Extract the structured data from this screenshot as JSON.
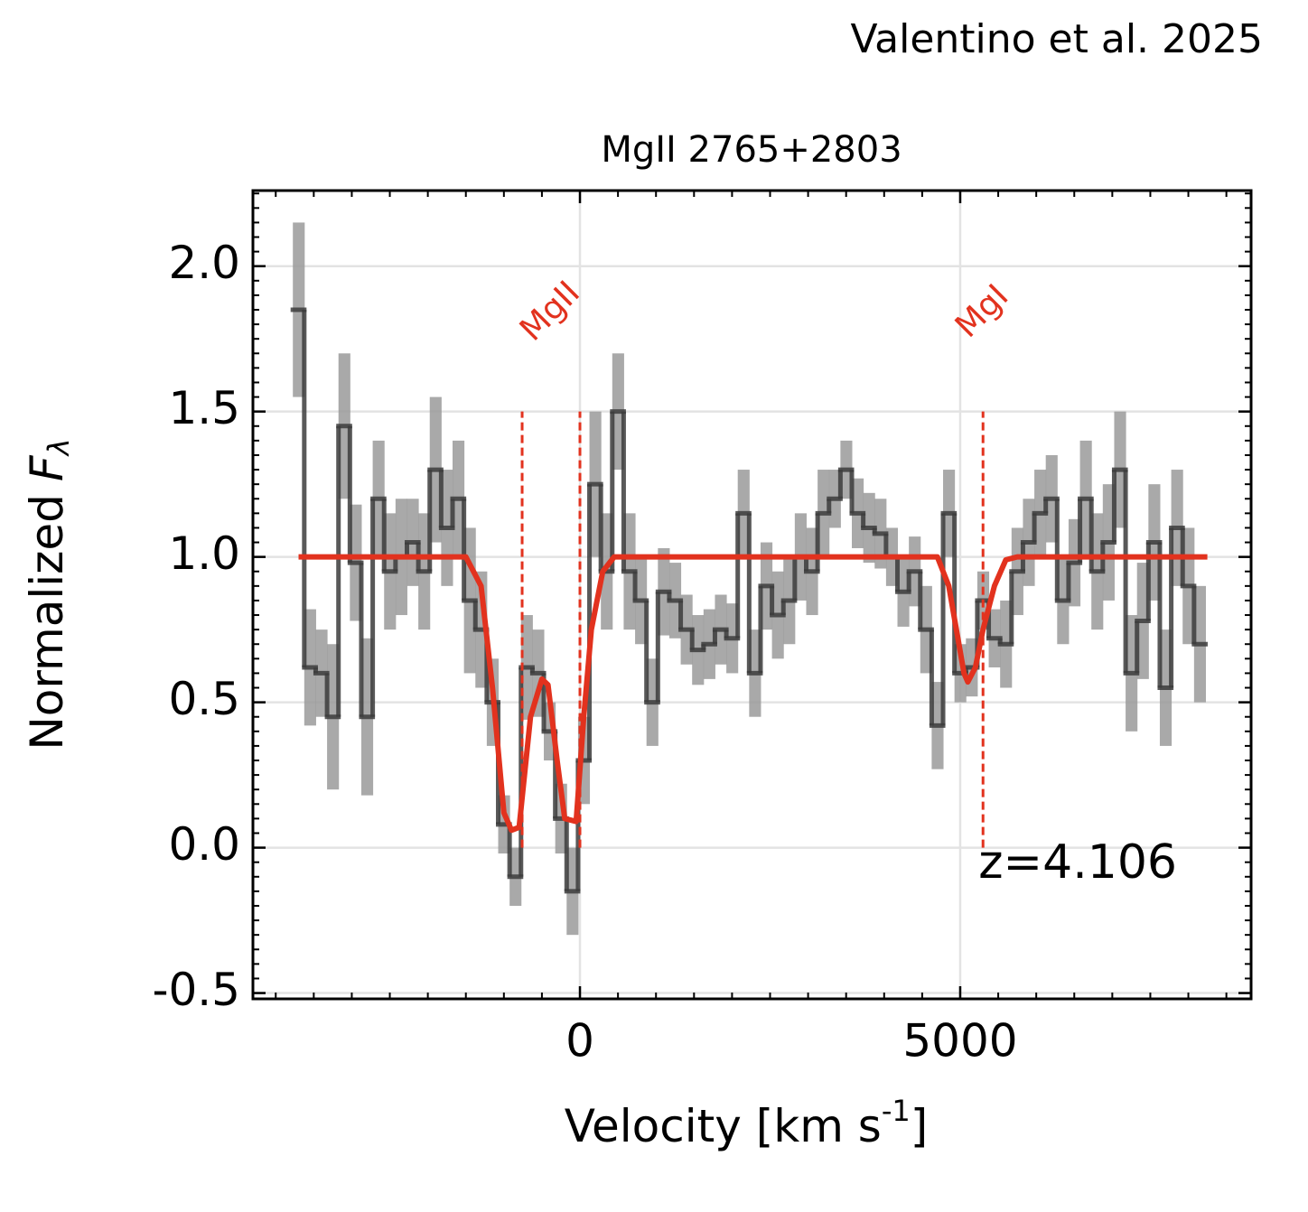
{
  "chart_data": {
    "type": "step",
    "title": "MgII 2765+2803",
    "source": "Valentino et al. 2025",
    "xlabel": [
      "Velocity [km s",
      "-1",
      "]"
    ],
    "ylabel": [
      "Normalized",
      "F",
      "λ"
    ],
    "annotation": "z=4.106",
    "x": [
      -3700,
      -3550,
      -3400,
      -3250,
      -3100,
      -2950,
      -2800,
      -2650,
      -2500,
      -2350,
      -2200,
      -2050,
      -1900,
      -1750,
      -1600,
      -1450,
      -1300,
      -1150,
      -1000,
      -850,
      -700,
      -550,
      -400,
      -250,
      -100,
      50,
      200,
      350,
      500,
      650,
      800,
      950,
      1100,
      1250,
      1400,
      1550,
      1700,
      1850,
      2000,
      2150,
      2300,
      2450,
      2600,
      2750,
      2900,
      3050,
      3200,
      3350,
      3500,
      3650,
      3800,
      3950,
      4100,
      4250,
      4400,
      4550,
      4700,
      4850,
      5000,
      5150,
      5300,
      5450,
      5600,
      5750,
      5900,
      6050,
      6200,
      6350,
      6500,
      6650,
      6800,
      6950,
      7100,
      7250,
      7400,
      7550,
      7700,
      7850,
      8000,
      8150
    ],
    "values": [
      1.85,
      0.62,
      0.6,
      0.45,
      1.45,
      0.98,
      0.45,
      1.2,
      0.95,
      1.0,
      1.05,
      0.95,
      1.3,
      1.1,
      1.2,
      0.85,
      0.75,
      0.5,
      0.08,
      -0.1,
      0.62,
      0.6,
      0.4,
      0.1,
      -0.15,
      0.3,
      1.25,
      0.95,
      1.5,
      0.95,
      0.85,
      0.5,
      0.88,
      0.85,
      0.75,
      0.68,
      0.7,
      0.75,
      0.72,
      1.15,
      0.6,
      0.9,
      0.8,
      0.85,
      1.0,
      0.95,
      1.15,
      1.2,
      1.3,
      1.15,
      1.1,
      1.08,
      1.0,
      0.88,
      0.95,
      0.75,
      0.42,
      1.15,
      0.6,
      0.62,
      0.85,
      0.72,
      0.7,
      0.95,
      1.05,
      1.15,
      1.2,
      0.85,
      0.98,
      1.2,
      0.95,
      1.05,
      1.3,
      0.6,
      0.78,
      1.05,
      0.55,
      1.1,
      0.9,
      0.7
    ],
    "errors": [
      0.3,
      0.2,
      0.15,
      0.25,
      0.25,
      0.2,
      0.27,
      0.2,
      0.2,
      0.2,
      0.15,
      0.2,
      0.25,
      0.2,
      0.2,
      0.25,
      0.2,
      0.15,
      0.1,
      0.1,
      0.18,
      0.15,
      0.1,
      0.12,
      0.15,
      0.15,
      0.25,
      0.2,
      0.2,
      0.2,
      0.15,
      0.15,
      0.15,
      0.13,
      0.12,
      0.12,
      0.12,
      0.12,
      0.12,
      0.15,
      0.15,
      0.15,
      0.15,
      0.15,
      0.15,
      0.15,
      0.15,
      0.1,
      0.1,
      0.12,
      0.12,
      0.12,
      0.1,
      0.12,
      0.12,
      0.15,
      0.15,
      0.15,
      0.1,
      0.1,
      0.1,
      0.1,
      0.15,
      0.15,
      0.15,
      0.15,
      0.15,
      0.15,
      0.15,
      0.2,
      0.2,
      0.2,
      0.2,
      0.2,
      0.2,
      0.2,
      0.2,
      0.2,
      0.2,
      0.2
    ],
    "color": "#3c3c3c",
    "error_color": "#9a9a9a",
    "model": {
      "type": "line",
      "color": "#e2321e",
      "x": [
        -3700,
        -1500,
        -1300,
        -1150,
        -1000,
        -900,
        -800,
        -650,
        -500,
        -420,
        -300,
        -200,
        -50,
        50,
        150,
        300,
        450,
        4700,
        4850,
        4950,
        5050,
        5100,
        5200,
        5300,
        5450,
        5600,
        5750,
        8250
      ],
      "values": [
        1,
        1,
        0.9,
        0.55,
        0.12,
        0.06,
        0.07,
        0.45,
        0.58,
        0.56,
        0.3,
        0.1,
        0.09,
        0.45,
        0.75,
        0.95,
        1,
        1,
        0.9,
        0.75,
        0.6,
        0.57,
        0.62,
        0.75,
        0.9,
        0.99,
        1,
        1
      ]
    },
    "absorption_lines": [
      {
        "name": "MgII",
        "x": [
          -760,
          0
        ]
      },
      {
        "name": "MgI",
        "x": [
          5300
        ]
      }
    ],
    "line_extent": [
      0,
      1.5
    ],
    "line_color": "#e2321e",
    "xlim": [
      -4300,
      8825
    ],
    "ylim": [
      -0.52,
      2.26
    ],
    "xticks": [
      0,
      5000
    ],
    "yticks": [
      -0.5,
      {
        "value": 0,
        "label": "0.0"
      },
      0.5,
      {
        "value": 1,
        "label": "1.0"
      },
      1.5,
      {
        "value": 2,
        "label": "2.0"
      }
    ],
    "xminorticks": [
      -4000,
      -3500,
      -3000,
      -2500,
      -2000,
      -1500,
      -1000,
      -500,
      500,
      1000,
      1500,
      2000,
      2500,
      3000,
      3500,
      4000,
      4500,
      5500,
      6000,
      6500,
      7000,
      7500,
      8000,
      8500
    ],
    "yminorticks": [
      -0.45,
      -0.4,
      -0.35,
      -0.3,
      -0.25,
      -0.2,
      -0.15,
      -0.1,
      -0.05,
      0.05,
      0.1,
      0.15,
      0.2,
      0.25,
      0.3,
      0.35,
      0.4,
      0.45,
      0.55,
      0.6,
      0.65,
      0.7,
      0.75,
      0.8,
      0.85,
      0.9,
      0.95,
      1.05,
      1.1,
      1.15,
      1.2,
      1.25,
      1.3,
      1.35,
      1.4,
      1.45,
      1.55,
      1.6,
      1.65,
      1.7,
      1.75,
      1.8,
      1.85,
      1.9,
      1.95,
      2.05,
      2.1,
      2.15,
      2.2,
      2.25
    ],
    "grid": true
  }
}
